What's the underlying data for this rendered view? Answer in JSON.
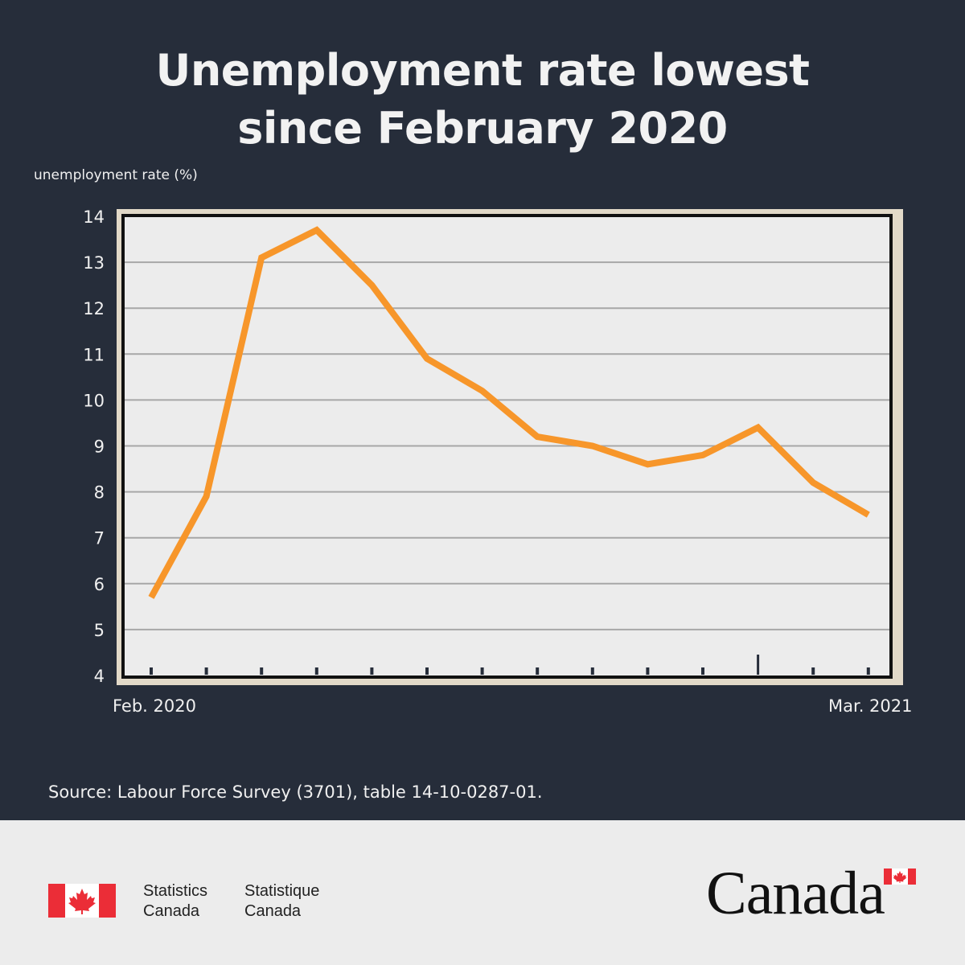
{
  "title_line1": "Unemployment rate lowest",
  "title_line2": "since February 2020",
  "colors": {
    "background": "#262d3a",
    "line": "#f7962a",
    "plot_bg": "#ececec",
    "frame": "#e2d9c8",
    "footer_bg": "#ececec",
    "flag_red": "#eb2d37"
  },
  "chart_data": {
    "type": "line",
    "ylabel": "unemployment rate (%)",
    "ylim": [
      4,
      14
    ],
    "yticks": [
      "14",
      "13",
      "12",
      "11",
      "10",
      "9",
      "8",
      "7",
      "6",
      "5",
      "4"
    ],
    "x_start_label": "Feb. 2020",
    "x_end_label": "Mar. 2021",
    "grid": true,
    "series": [
      {
        "values": [
          5.7,
          7.9,
          13.1,
          13.7,
          12.5,
          10.9,
          10.2,
          9.2,
          9.0,
          8.6,
          8.8,
          9.4,
          8.2,
          7.5
        ]
      }
    ]
  },
  "source": "Source: Labour Force Survey (3701), table 14-10-0287-01.",
  "footer": {
    "org_en_line1": "Statistics",
    "org_en_line2": "Canada",
    "org_fr_line1": "Statistique",
    "org_fr_line2": "Canada",
    "wordmark": "Canada",
    "flag_icon": "canada-flag-icon"
  }
}
